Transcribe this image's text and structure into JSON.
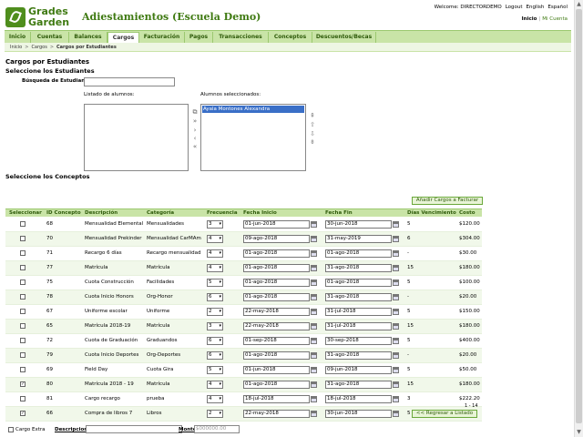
{
  "logo": {
    "line1": "Grades",
    "line2": "Garden"
  },
  "app_title": "Adiestamientos (Escuela Demo)",
  "welcome": {
    "text": "Welcome: DIRECTORDEMO",
    "logout": "Logout",
    "english": "English",
    "espanol": "Español"
  },
  "toplinks": {
    "inicio": "Inicio",
    "sep": "|",
    "mi_cuenta": "Mi Cuenta"
  },
  "nav": {
    "tabs": [
      {
        "label": "Inicio"
      },
      {
        "label": "Cuentas"
      },
      {
        "label": "Balances"
      },
      {
        "label": "Cargos"
      },
      {
        "label": "Facturación"
      },
      {
        "label": "Pagos"
      },
      {
        "label": "Transacciones"
      },
      {
        "label": "Conceptos"
      },
      {
        "label": "Descuentos/Becas"
      }
    ],
    "active": "Cargos"
  },
  "breadcrumb": {
    "items": [
      "Inicio",
      "Cargos",
      "Cargos por Estudiantes"
    ],
    "arrow": ">"
  },
  "page": {
    "title": "Cargos por Estudiantes",
    "select_students": "Seleccione los Estudiantes",
    "search_label": "Búsqueda de Estudiante",
    "list_label": "Listado de alumnos:",
    "selected_label": "Alumnos seleccionados:",
    "selected_students": [
      "Ayala Montones Alexandra"
    ],
    "select_concepts": "Seleccione los Conceptos",
    "add_button": "Añadir Cargos a Facturar",
    "back_button": "<< Regresar a Listado",
    "pagination": "1 - 14"
  },
  "move_icons": {
    "add_all": "⧉",
    "add": "»",
    "add_one": "›",
    "remove_one": "‹",
    "remove_all": "«"
  },
  "order_icons": {
    "top": "⇞",
    "up": "⇧",
    "down": "⇩",
    "bottom": "⇟"
  },
  "table": {
    "headers": [
      "Seleccionar",
      "ID Concepto",
      "Descripción",
      "Categoría",
      "Frecuencia",
      "Fecha Inicio",
      "Fecha Fin",
      "Días Vencimiento",
      "Costo"
    ],
    "rows": [
      {
        "checked": false,
        "check_mark": "",
        "id": "68",
        "desc": "Mensualidad Elemental",
        "cat": "Mensualidades",
        "freq": "3",
        "start": "01-jun-2018",
        "end": "30-jun-2018",
        "days": "5",
        "cost": "$120.00"
      },
      {
        "checked": false,
        "check_mark": "",
        "id": "70",
        "desc": "Mensualidad Prekinder",
        "cat": "Mensualidad CarMAm",
        "freq": "4",
        "start": "09-ago-2018",
        "end": "31-may-2019",
        "days": "6",
        "cost": "$304.00"
      },
      {
        "checked": false,
        "check_mark": "",
        "id": "71",
        "desc": "Recargo 6 días",
        "cat": "Recargo mensualidad",
        "freq": "4",
        "start": "01-ago-2018",
        "end": "01-ago-2018",
        "days": "-",
        "cost": "$30.00"
      },
      {
        "checked": false,
        "check_mark": "",
        "id": "77",
        "desc": "Matrícula",
        "cat": "Matrícula",
        "freq": "4",
        "start": "01-ago-2018",
        "end": "31-ago-2018",
        "days": "15",
        "cost": "$180.00"
      },
      {
        "checked": false,
        "check_mark": "",
        "id": "75",
        "desc": "Cuota Construcción",
        "cat": "Facilidades",
        "freq": "5",
        "start": "01-ago-2018",
        "end": "01-ago-2018",
        "days": "5",
        "cost": "$100.00"
      },
      {
        "checked": false,
        "check_mark": "",
        "id": "78",
        "desc": "Cuota Inicio Honors",
        "cat": "Org-Honor",
        "freq": "6",
        "start": "01-ago-2018",
        "end": "31-ago-2018",
        "days": "-",
        "cost": "$20.00"
      },
      {
        "checked": false,
        "check_mark": "",
        "id": "67",
        "desc": "Uniforme escolar",
        "cat": "Uniforme",
        "freq": "2",
        "start": "22-may-2018",
        "end": "31-jul-2018",
        "days": "5",
        "cost": "$150.00"
      },
      {
        "checked": false,
        "check_mark": "",
        "id": "65",
        "desc": "Matrícula 2018-19",
        "cat": "Matrícula",
        "freq": "3",
        "start": "22-may-2018",
        "end": "31-jul-2018",
        "days": "15",
        "cost": "$180.00"
      },
      {
        "checked": false,
        "check_mark": "",
        "id": "72",
        "desc": "Cuota de Graduación",
        "cat": "Graduandos",
        "freq": "6",
        "start": "01-sep-2018",
        "end": "30-sep-2018",
        "days": "5",
        "cost": "$400.00"
      },
      {
        "checked": false,
        "check_mark": "",
        "id": "79",
        "desc": "Cuota Inicio Deportes",
        "cat": "Org-Deportes",
        "freq": "6",
        "start": "01-ago-2018",
        "end": "31-ago-2018",
        "days": "-",
        "cost": "$20.00"
      },
      {
        "checked": false,
        "check_mark": "",
        "id": "69",
        "desc": "Field Day",
        "cat": "Cuota Gira",
        "freq": "5",
        "start": "01-jun-2018",
        "end": "09-jun-2018",
        "days": "5",
        "cost": "$50.00"
      },
      {
        "checked": true,
        "check_mark": "✓",
        "id": "80",
        "desc": "Matrícula 2018 - 19",
        "cat": "Matrícula",
        "freq": "4",
        "start": "01-ago-2018",
        "end": "31-ago-2018",
        "days": "15",
        "cost": "$180.00"
      },
      {
        "checked": false,
        "check_mark": "",
        "id": "81",
        "desc": "Cargo recargo",
        "cat": "prueba",
        "freq": "4",
        "start": "18-jul-2018",
        "end": "18-jul-2018",
        "days": "3",
        "cost": "$222.20"
      },
      {
        "checked": true,
        "check_mark": "✓",
        "id": "66",
        "desc": "Compra de libros 7",
        "cat": "Libros",
        "freq": "2",
        "start": "22-may-2018",
        "end": "30-jun-2018",
        "days": "5",
        "cost": "$25.00"
      }
    ]
  },
  "extra": {
    "label": "Cargo Extra",
    "desc_label": "Descripcion",
    "monto_label": "Monto",
    "monto_placeholder": "$000000.00"
  },
  "colors": {
    "brand": "#3f7a12",
    "nav_bg": "#c9e4a7",
    "selected": "#3a6fc7"
  }
}
